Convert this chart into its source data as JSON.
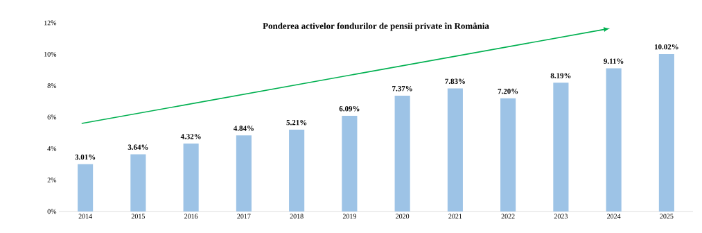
{
  "chart_data": {
    "type": "bar",
    "title": "Ponderea activelor fondurilor  de pensii private în România",
    "categories": [
      "2014",
      "2015",
      "2016",
      "2017",
      "2018",
      "2019",
      "2020",
      "2021",
      "2022",
      "2023",
      "2024",
      "2025"
    ],
    "values": [
      3.01,
      3.64,
      4.32,
      4.84,
      5.21,
      6.09,
      7.37,
      7.83,
      7.2,
      8.19,
      9.11,
      10.02
    ],
    "value_labels": [
      "3.01%",
      "3.64%",
      "4.32%",
      "4.84%",
      "5.21%",
      "6.09%",
      "7.37%",
      "7.83%",
      "7.20%",
      "8.19%",
      "9.11%",
      "10.02%"
    ],
    "color": "#9dc3e6",
    "ylim": [
      0,
      12
    ],
    "yticks": [
      {
        "value": 0,
        "label": "0%"
      },
      {
        "value": 2,
        "label": "2%"
      },
      {
        "value": 4,
        "label": "4%"
      },
      {
        "value": 6,
        "label": "6%"
      },
      {
        "value": 8,
        "label": "8%"
      },
      {
        "value": 10,
        "label": "10%"
      },
      {
        "value": 12,
        "label": "12%"
      }
    ]
  }
}
